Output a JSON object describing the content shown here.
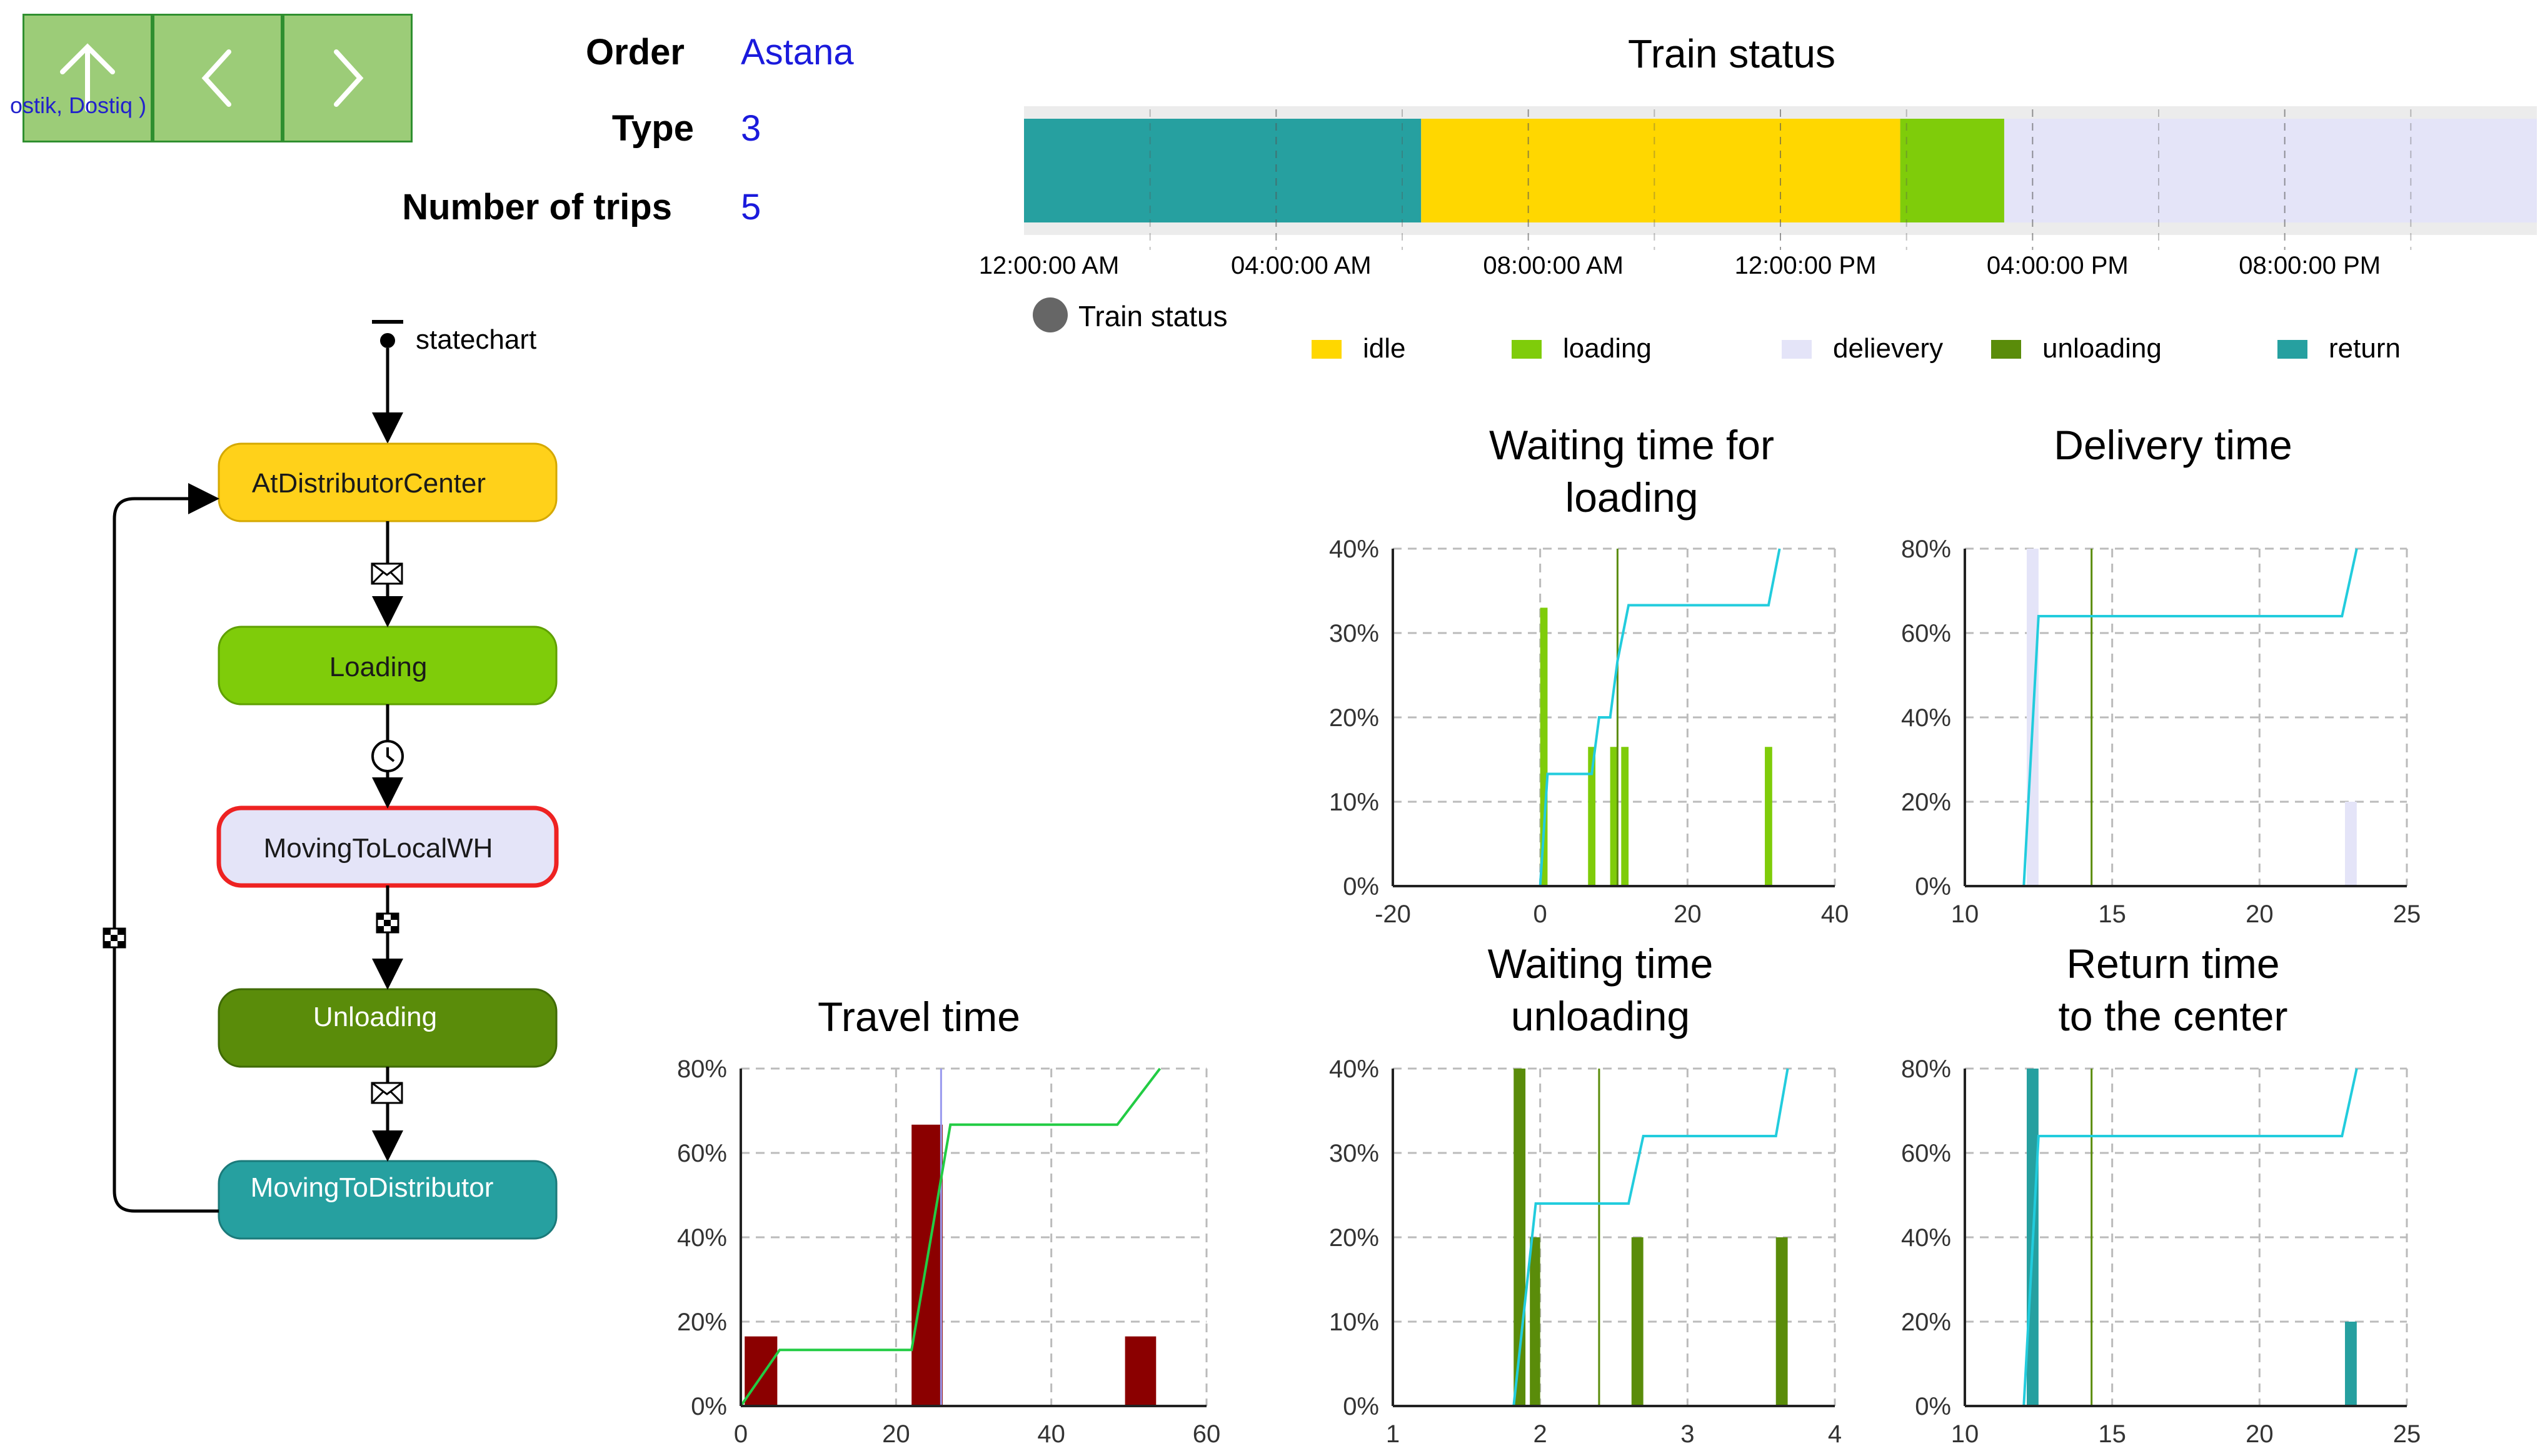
{
  "nav": {
    "up_icon": "arrow-up-icon",
    "back_icon": "chevron-left-icon",
    "forward_icon": "chevron-right-icon",
    "overlay_text": "ostik, Dostiq )"
  },
  "info": {
    "order_label": "Order",
    "order_value": "Astana",
    "type_label": "Type",
    "type_value": "3",
    "trips_label": "Number of trips",
    "trips_value": "5"
  },
  "train_status": {
    "title": "Train status",
    "axis_ticks": [
      "12:00:00 AM",
      "04:00:00 AM",
      "08:00:00 AM",
      "12:00:00 PM",
      "04:00:00 PM",
      "08:00:00 PM"
    ],
    "segments": [
      {
        "state": "return",
        "start_h": 0,
        "end_h": 6.3
      },
      {
        "state": "idle",
        "start_h": 6.3,
        "end_h": 13.9
      },
      {
        "state": "loading",
        "start_h": 13.9,
        "end_h": 15.55
      },
      {
        "state": "delievery",
        "start_h": 15.55,
        "end_h": 24
      }
    ],
    "badge_label": "Train status",
    "legend": [
      {
        "label": "idle",
        "color": "#ffd700"
      },
      {
        "label": "loading",
        "color": "#7fcc0a"
      },
      {
        "label": "delievery",
        "color": "#e4e4f8"
      },
      {
        "label": "unloading",
        "color": "#5a8c0a"
      },
      {
        "label": "return",
        "color": "#26a0a0"
      }
    ]
  },
  "statechart": {
    "label": "statechart",
    "states": [
      {
        "name": "AtDistributorCenter",
        "color": "#ffd11a",
        "border": "#d4a800",
        "text_color": "#1a1a1a"
      },
      {
        "name": "Loading",
        "color": "#7fcc0a",
        "border": "#5fa000",
        "text_color": "#1a1a1a"
      },
      {
        "name": "MovingToLocalWH",
        "color": "#e4e4f8",
        "border": "#ee2222",
        "text_color": "#1a1a1a"
      },
      {
        "name": "Unloading",
        "color": "#5a8c0a",
        "border": "#3f6a05",
        "text_color": "#ffffff"
      },
      {
        "name": "MovingToDistributor",
        "color": "#26a0a0",
        "border": "#1b7a7a",
        "text_color": "#ffffff"
      }
    ],
    "transition_icons": [
      "envelope-icon",
      "clock-icon",
      "checkered-flag-icon",
      "envelope-icon",
      "checkered-flag-icon"
    ]
  },
  "charts": [
    {
      "id": "waiting-loading",
      "title_lines": [
        "Waiting time for",
        "loading"
      ],
      "type": "histogram",
      "bar_color": "#7fcc0a",
      "xlim": [
        -20,
        40
      ],
      "xticks": [
        "-20",
        "0",
        "20",
        "40"
      ],
      "xtick_values": [
        -20,
        0,
        20,
        40
      ],
      "ylim": [
        0,
        40
      ],
      "yticks": [
        "0%",
        "10%",
        "20%",
        "30%",
        "40%"
      ],
      "ytick_values": [
        0,
        10,
        20,
        30,
        40
      ],
      "bars": [
        {
          "x0": 0,
          "x1": 1,
          "y": 33
        },
        {
          "x0": 6.5,
          "x1": 7.5,
          "y": 16.5
        },
        {
          "x0": 9.5,
          "x1": 10.5,
          "y": 16.5
        },
        {
          "x0": 11,
          "x1": 12,
          "y": 16.5
        },
        {
          "x0": 30.5,
          "x1": 31.5,
          "y": 16.5
        }
      ],
      "mean_x": 10.5,
      "mean_color": "#5a8c0a",
      "cdf": {
        "color": "#22ccdd",
        "points": [
          [
            0,
            0
          ],
          [
            1,
            13.3
          ],
          [
            7,
            13.3
          ],
          [
            8,
            20
          ],
          [
            9.5,
            20
          ],
          [
            10.5,
            26.7
          ],
          [
            12,
            33.3
          ],
          [
            31,
            33.3
          ],
          [
            32.5,
            40
          ]
        ]
      }
    },
    {
      "id": "delivery",
      "title_lines": [
        "Delivery time"
      ],
      "type": "histogram",
      "bar_color": "#e4e4f8",
      "xlim": [
        10,
        25
      ],
      "xticks": [
        "10",
        "15",
        "20",
        "25"
      ],
      "xtick_values": [
        10,
        15,
        20,
        25
      ],
      "ylim": [
        0,
        80
      ],
      "yticks": [
        "0%",
        "20%",
        "40%",
        "60%",
        "80%"
      ],
      "ytick_values": [
        0,
        20,
        40,
        60,
        80
      ],
      "bars": [
        {
          "x0": 12.1,
          "x1": 12.5,
          "y": 80
        },
        {
          "x0": 22.9,
          "x1": 23.3,
          "y": 20
        }
      ],
      "mean_x": 14.3,
      "mean_color": "#5a8c0a",
      "cdf": {
        "color": "#22ccdd",
        "points": [
          [
            12,
            0
          ],
          [
            12.5,
            64
          ],
          [
            22.8,
            64
          ],
          [
            23.3,
            80
          ]
        ]
      }
    },
    {
      "id": "waiting-unloading",
      "title_lines": [
        "Waiting time",
        "unloading"
      ],
      "type": "histogram",
      "bar_color": "#5a8c0a",
      "xlim": [
        1,
        4
      ],
      "xticks": [
        "1",
        "2",
        "3",
        "4"
      ],
      "xtick_values": [
        1,
        2,
        3,
        4
      ],
      "ylim": [
        0,
        40
      ],
      "yticks": [
        "0%",
        "10%",
        "20%",
        "30%",
        "40%"
      ],
      "ytick_values": [
        0,
        10,
        20,
        30,
        40
      ],
      "bars": [
        {
          "x0": 1.82,
          "x1": 1.9,
          "y": 40
        },
        {
          "x0": 1.93,
          "x1": 2.0,
          "y": 20
        },
        {
          "x0": 2.62,
          "x1": 2.7,
          "y": 20
        },
        {
          "x0": 3.6,
          "x1": 3.68,
          "y": 20
        }
      ],
      "mean_x": 2.4,
      "mean_color": "#5a8c0a",
      "cdf": {
        "color": "#22ccdd",
        "points": [
          [
            1.82,
            0
          ],
          [
            1.97,
            24
          ],
          [
            2.6,
            24
          ],
          [
            2.7,
            32
          ],
          [
            3.6,
            32
          ],
          [
            3.68,
            40
          ]
        ]
      }
    },
    {
      "id": "return",
      "title_lines": [
        "Return time",
        "to the center"
      ],
      "type": "histogram",
      "bar_color": "#26a0a0",
      "xlim": [
        10,
        25
      ],
      "xticks": [
        "10",
        "15",
        "20",
        "25"
      ],
      "xtick_values": [
        10,
        15,
        20,
        25
      ],
      "ylim": [
        0,
        80
      ],
      "yticks": [
        "0%",
        "20%",
        "40%",
        "60%",
        "80%"
      ],
      "ytick_values": [
        0,
        20,
        40,
        60,
        80
      ],
      "bars": [
        {
          "x0": 12.1,
          "x1": 12.5,
          "y": 80
        },
        {
          "x0": 22.9,
          "x1": 23.3,
          "y": 20
        }
      ],
      "mean_x": 14.3,
      "mean_color": "#5a8c0a",
      "cdf": {
        "color": "#22ccdd",
        "points": [
          [
            12,
            0
          ],
          [
            12.5,
            64
          ],
          [
            22.8,
            64
          ],
          [
            23.3,
            80
          ]
        ]
      }
    },
    {
      "id": "travel",
      "title_lines": [
        "Travel time"
      ],
      "type": "histogram",
      "bar_color": "#8b0000",
      "xlim": [
        0,
        60
      ],
      "xticks": [
        "0",
        "20",
        "40",
        "60"
      ],
      "xtick_values": [
        0,
        20,
        40,
        60
      ],
      "ylim": [
        0,
        80
      ],
      "yticks": [
        "0%",
        "20%",
        "40%",
        "60%",
        "80%"
      ],
      "ytick_values": [
        0,
        20,
        40,
        60,
        80
      ],
      "bars": [
        {
          "x0": 0.5,
          "x1": 4.7,
          "y": 16.5
        },
        {
          "x0": 22,
          "x1": 26,
          "y": 66.7
        },
        {
          "x0": 49.5,
          "x1": 53.5,
          "y": 16.5
        }
      ],
      "mean_x": 25.8,
      "mean_color": "#9999ee",
      "cdf": {
        "color": "#22cc44",
        "points": [
          [
            0,
            0
          ],
          [
            5,
            13.3
          ],
          [
            22,
            13.3
          ],
          [
            27,
            66.7
          ],
          [
            48.5,
            66.7
          ],
          [
            54,
            80
          ]
        ]
      }
    }
  ]
}
